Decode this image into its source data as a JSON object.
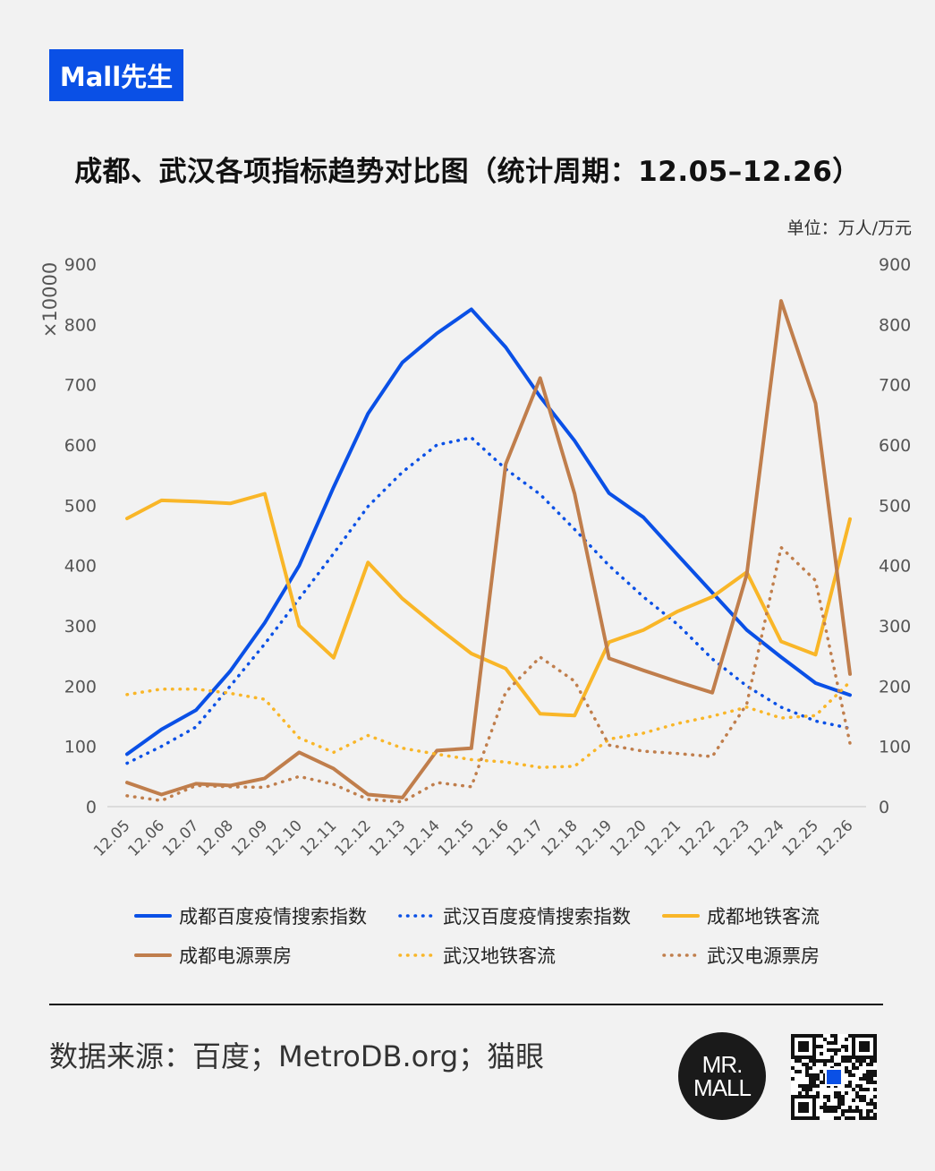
{
  "brand": {
    "label": "Mall先生"
  },
  "title": "成都、武汉各项指标趋势对比图（统计周期：12.05–12.26）",
  "unit_label": "单位：万人/万元",
  "footer": {
    "source": "数据来源：百度；MetroDB.org；猫眼",
    "logo_line1": "MR.",
    "logo_line2": "MALL"
  },
  "colors": {
    "brand_blue": "#0a50e6",
    "line_blue": "#0a50e6",
    "line_yellow": "#f9b628",
    "line_brown": "#c07e4c"
  },
  "icons": {
    "logo": "mr-mall-logo",
    "qr": "qr-code-icon"
  },
  "chart_data": {
    "type": "line",
    "categories": [
      "12.05",
      "12.06",
      "12.07",
      "12.08",
      "12.09",
      "12.10",
      "12.11",
      "12.12",
      "12.13",
      "12.14",
      "12.15",
      "12.16",
      "12.17",
      "12.18",
      "12.19",
      "12.20",
      "12.21",
      "12.22",
      "12.23",
      "12.24",
      "12.25",
      "12.26"
    ],
    "ylim": [
      0,
      900
    ],
    "yticks": [
      0,
      100,
      200,
      300,
      400,
      500,
      600,
      700,
      800,
      900
    ],
    "ylabel": "×10000",
    "grid": false,
    "legend_position": "bottom",
    "series": [
      {
        "name": "成都百度疫情搜索指数",
        "color": "#0a50e6",
        "style": "solid",
        "values": [
          87,
          128,
          160,
          225,
          305,
          400,
          530,
          652,
          737,
          785,
          825,
          762,
          680,
          607,
          520,
          480,
          417,
          355,
          293,
          248,
          205,
          185
        ]
      },
      {
        "name": "武汉百度疫情搜索指数",
        "color": "#0a50e6",
        "style": "dotted",
        "values": [
          72,
          100,
          132,
          200,
          270,
          345,
          420,
          498,
          555,
          600,
          612,
          560,
          518,
          460,
          400,
          348,
          302,
          245,
          200,
          165,
          142,
          130
        ]
      },
      {
        "name": "成都地铁客流",
        "color": "#f9b628",
        "style": "solid",
        "values": [
          478,
          508,
          506,
          503,
          519,
          300,
          247,
          405,
          345,
          298,
          254,
          229,
          154,
          151,
          273,
          293,
          324,
          348,
          389,
          274,
          252,
          477
        ]
      },
      {
        "name": "成都电源票房",
        "color": "#c07e4c",
        "style": "solid",
        "values": [
          40,
          20,
          38,
          35,
          47,
          90,
          63,
          20,
          15,
          93,
          97,
          568,
          711,
          519,
          246,
          226,
          207,
          189,
          385,
          839,
          669,
          220
        ]
      },
      {
        "name": "武汉地铁客流",
        "color": "#f9b628",
        "style": "dotted",
        "values": [
          186,
          195,
          195,
          188,
          178,
          114,
          90,
          118,
          97,
          87,
          78,
          74,
          65,
          67,
          112,
          122,
          138,
          150,
          165,
          147,
          151,
          207
        ]
      },
      {
        "name": "武汉电源票房",
        "color": "#c07e4c",
        "style": "dotted",
        "values": [
          18,
          10,
          35,
          33,
          32,
          50,
          37,
          12,
          8,
          40,
          33,
          190,
          248,
          208,
          102,
          92,
          88,
          83,
          170,
          430,
          375,
          105
        ]
      }
    ]
  }
}
